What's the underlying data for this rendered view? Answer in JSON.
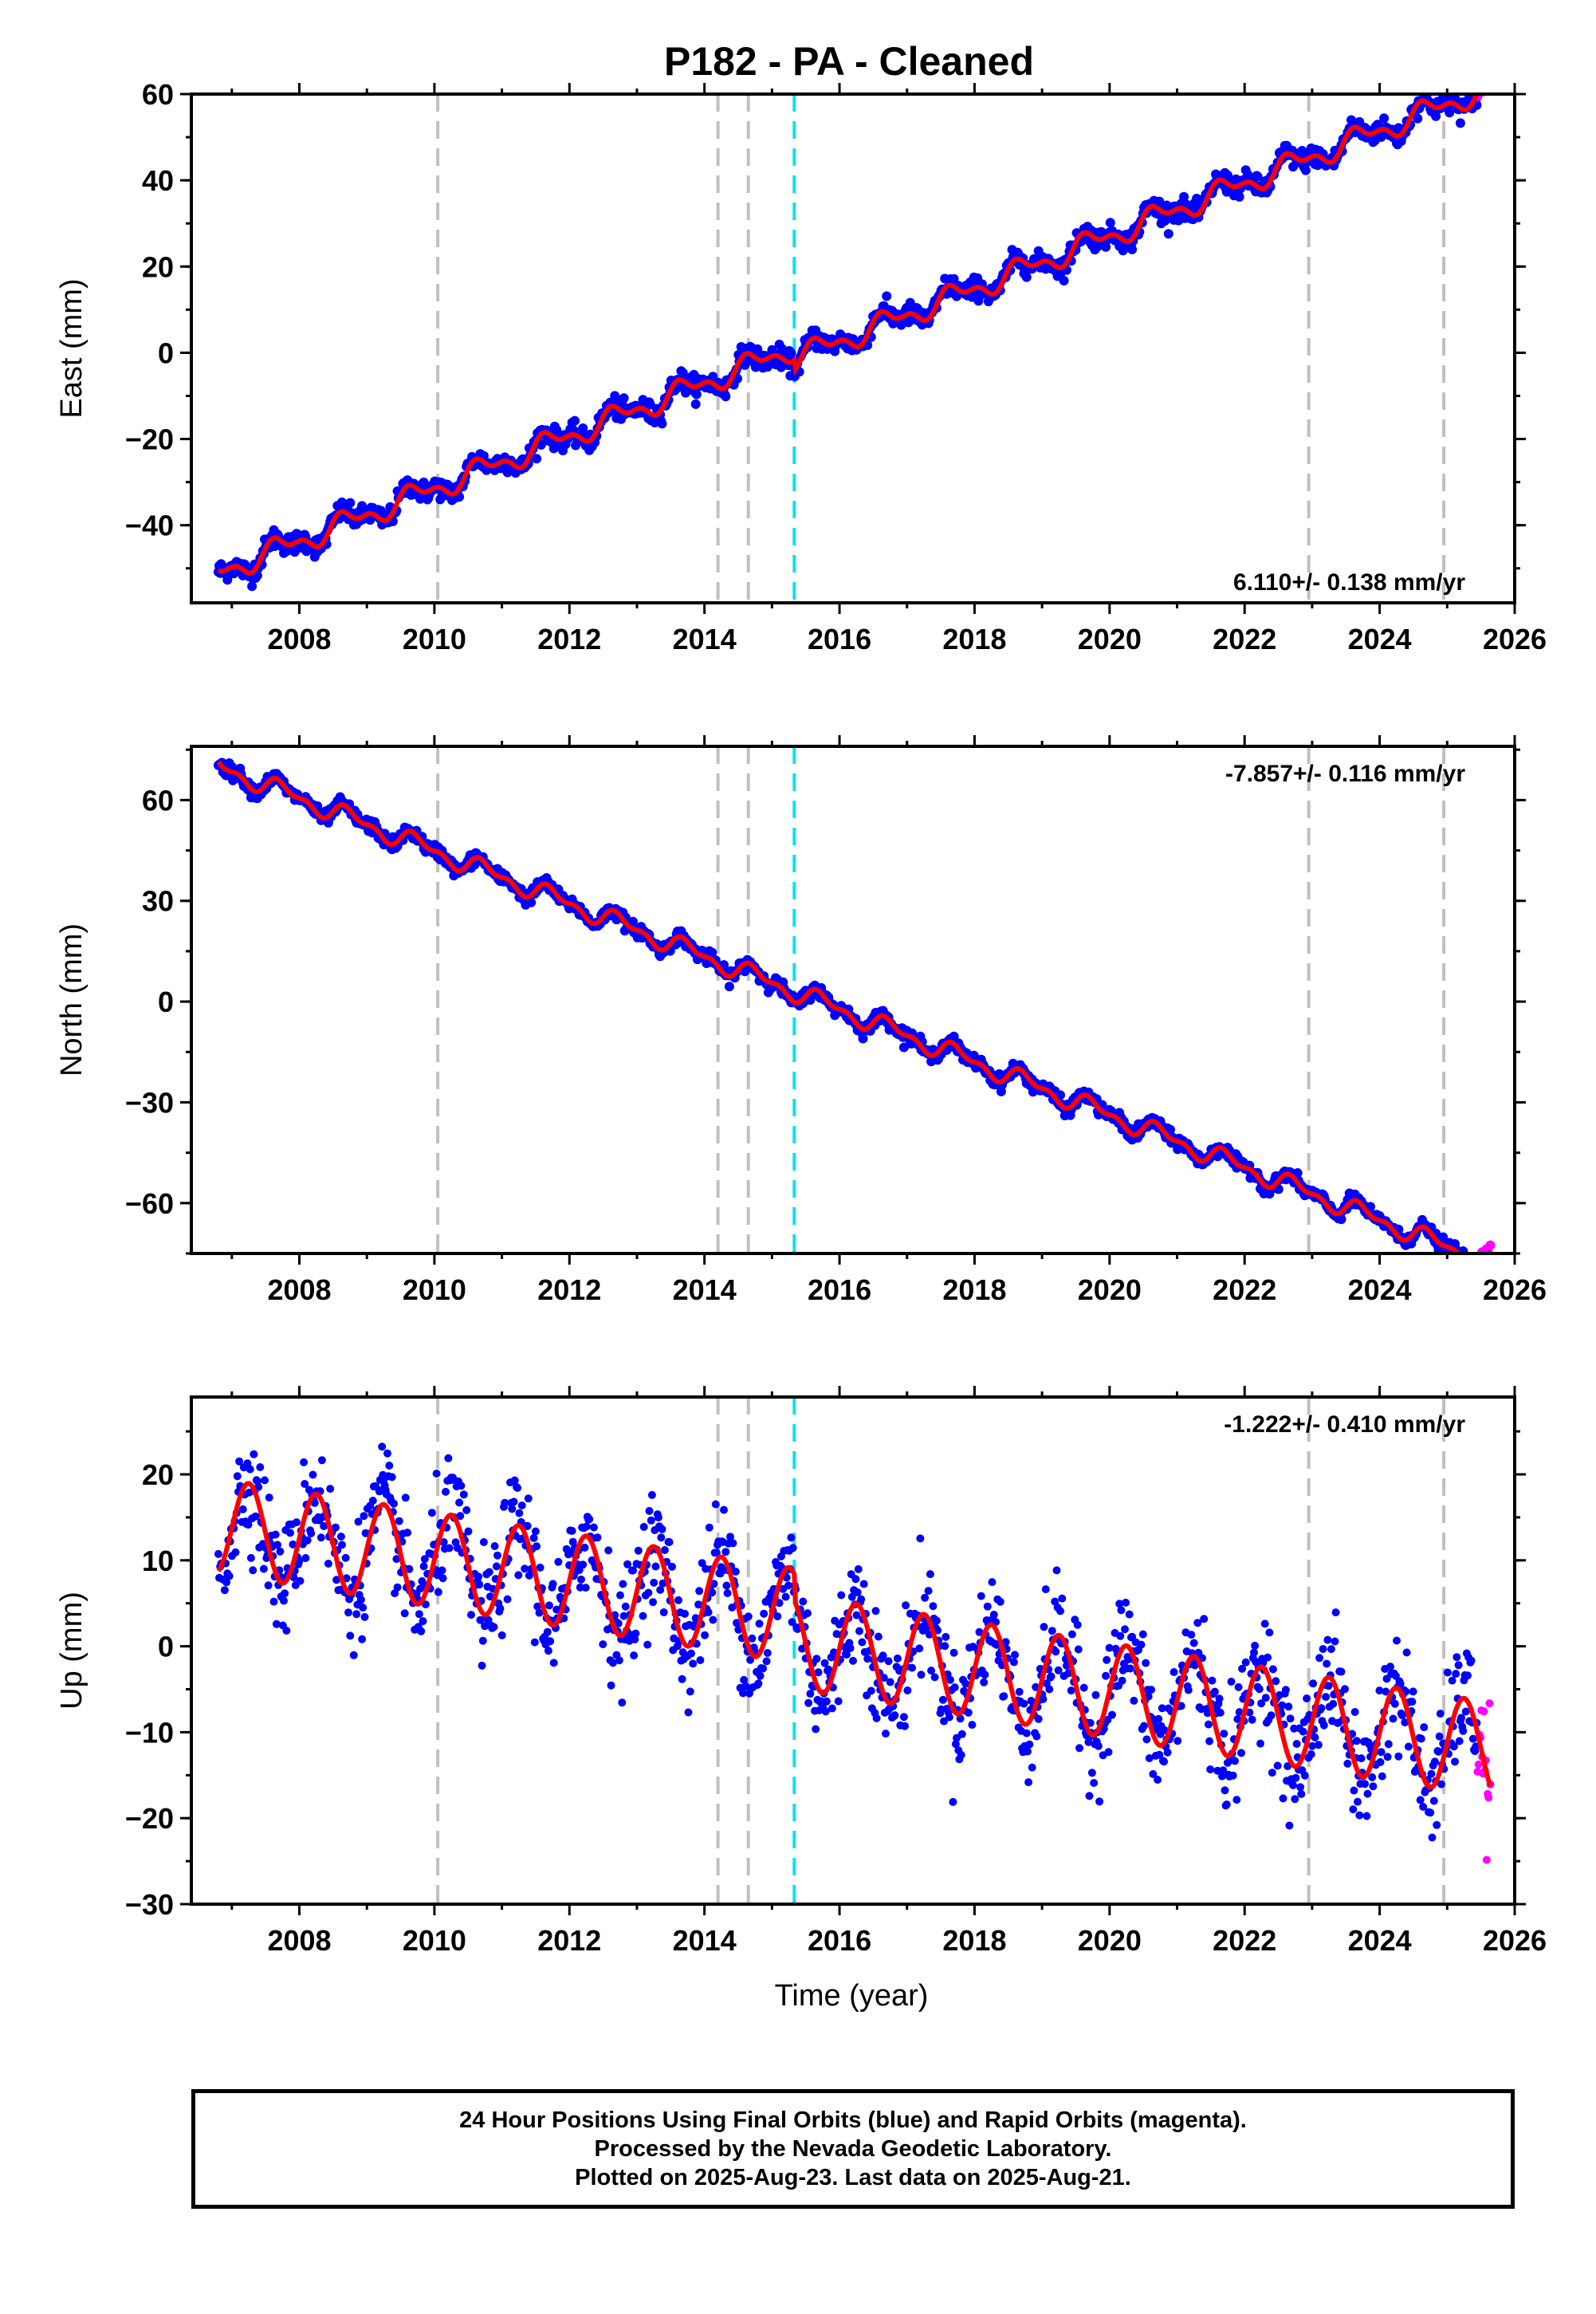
{
  "title": "P182  - PA - Cleaned",
  "xlabel": "Time (year)",
  "footer": {
    "lines": [
      "24 Hour Positions Using Final Orbits (blue) and Rapid Orbits (magenta).",
      "Processed by the Nevada Geodetic Laboratory.",
      "Plotted on 2025-Aug-23. Last data on 2025-Aug-21."
    ]
  },
  "colors": {
    "final_orbits": "#0000ff",
    "rapid_orbits": "#ff00ff",
    "model_fit": "#ff0000",
    "event_line": "#c0c0c0",
    "antenna_change_line": "#00e5ee"
  },
  "chart_data": [
    {
      "type": "scatter",
      "component": "east",
      "ylabel": "East (mm)",
      "rate_label": "6.110+/- 0.138 mm/yr",
      "rate_label_position": "bottom-right",
      "xlim": [
        2006.4,
        2026.0
      ],
      "ylim": [
        -58,
        60
      ],
      "xticks": [
        2008,
        2010,
        2012,
        2014,
        2016,
        2018,
        2020,
        2022,
        2024,
        2026
      ],
      "yticks": [
        -40,
        -20,
        0,
        20,
        40,
        60
      ],
      "grid": false,
      "start_year": 2006.8,
      "end_year": 2025.64,
      "rapid_start_year": 2025.45,
      "rate_mm_per_year": 6.11,
      "offset_at_start_mm": -51,
      "annual_amplitude_mm": 2.2,
      "annual_phase_year": 0.45,
      "scatter_mm": 1.2,
      "vertical_lines": [
        {
          "year": 2010.05,
          "color": "gray"
        },
        {
          "year": 2014.2,
          "color": "gray"
        },
        {
          "year": 2014.65,
          "color": "gray"
        },
        {
          "year": 2015.33,
          "color": "cyan"
        },
        {
          "year": 2022.95,
          "color": "gray"
        },
        {
          "year": 2024.95,
          "color": "gray"
        }
      ],
      "steps": [
        {
          "year": 2015.33,
          "delta_mm": -2.5
        }
      ]
    },
    {
      "type": "scatter",
      "component": "north",
      "ylabel": "North (mm)",
      "rate_label": "-7.857+/- 0.116 mm/yr",
      "rate_label_position": "top-right",
      "xlim": [
        2006.4,
        2026.0
      ],
      "ylim": [
        -75,
        76
      ],
      "xticks": [
        2008,
        2010,
        2012,
        2014,
        2016,
        2018,
        2020,
        2022,
        2024,
        2026
      ],
      "yticks": [
        -60,
        -30,
        0,
        30,
        60
      ],
      "grid": false,
      "start_year": 2006.8,
      "end_year": 2025.64,
      "rapid_start_year": 2025.45,
      "rate_mm_per_year": -7.857,
      "offset_at_start_mm": 70,
      "annual_amplitude_mm": 2.3,
      "annual_phase_year": 0.5,
      "scatter_mm": 1.0,
      "vertical_lines": [
        {
          "year": 2010.05,
          "color": "gray"
        },
        {
          "year": 2014.2,
          "color": "gray"
        },
        {
          "year": 2014.65,
          "color": "gray"
        },
        {
          "year": 2015.33,
          "color": "cyan"
        },
        {
          "year": 2022.95,
          "color": "gray"
        },
        {
          "year": 2024.95,
          "color": "gray"
        }
      ],
      "steps": []
    },
    {
      "type": "scatter",
      "component": "up",
      "ylabel": "Up (mm)",
      "rate_label": "-1.222+/- 0.410 mm/yr",
      "rate_label_position": "top-right",
      "xlim": [
        2006.4,
        2026.0
      ],
      "ylim": [
        -30,
        29
      ],
      "xticks": [
        2008,
        2010,
        2012,
        2014,
        2016,
        2018,
        2020,
        2022,
        2024,
        2026
      ],
      "yticks": [
        -30,
        -20,
        -10,
        0,
        10,
        20
      ],
      "grid": false,
      "start_year": 2006.8,
      "end_year": 2025.64,
      "rapid_start_year": 2025.45,
      "rate_mm_per_year": -1.222,
      "offset_at_start_mm": 14,
      "annual_amplitude_mm": 5.5,
      "annual_phase_year": 0.0,
      "scatter_mm": 3.2,
      "vertical_lines": [
        {
          "year": 2010.05,
          "color": "gray"
        },
        {
          "year": 2014.2,
          "color": "gray"
        },
        {
          "year": 2014.65,
          "color": "gray"
        },
        {
          "year": 2015.33,
          "color": "cyan"
        },
        {
          "year": 2022.95,
          "color": "gray"
        },
        {
          "year": 2024.95,
          "color": "gray"
        }
      ],
      "steps": [
        {
          "year": 2015.33,
          "delta_mm": -3
        }
      ]
    }
  ]
}
